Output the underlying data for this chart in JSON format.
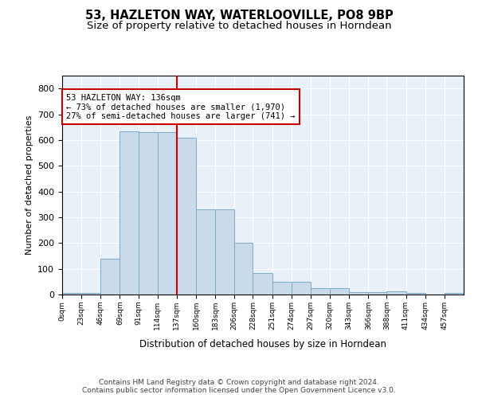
{
  "title": "53, HAZLETON WAY, WATERLOOVILLE, PO8 9BP",
  "subtitle": "Size of property relative to detached houses in Horndean",
  "xlabel": "Distribution of detached houses by size in Horndean",
  "ylabel": "Number of detached properties",
  "bar_edges": [
    0,
    23,
    46,
    69,
    91,
    114,
    137,
    160,
    183,
    206,
    228,
    251,
    274,
    297,
    320,
    343,
    366,
    388,
    411,
    434,
    457,
    480
  ],
  "bar_heights": [
    5,
    5,
    140,
    635,
    630,
    630,
    610,
    330,
    330,
    200,
    85,
    50,
    50,
    25,
    25,
    10,
    10,
    12,
    5,
    0,
    5
  ],
  "bar_color": "#c9daea",
  "bar_edge_color": "#7aaac8",
  "vline_x": 137,
  "vline_color": "#cc0000",
  "annotation_text": "53 HAZLETON WAY: 136sqm\n← 73% of detached houses are smaller (1,970)\n27% of semi-detached houses are larger (741) →",
  "annotation_box_color": "white",
  "annotation_box_edge": "#cc0000",
  "ylim": [
    0,
    850
  ],
  "yticks": [
    0,
    100,
    200,
    300,
    400,
    500,
    600,
    700,
    800
  ],
  "tick_labels": [
    "0sqm",
    "23sqm",
    "46sqm",
    "69sqm",
    "91sqm",
    "114sqm",
    "137sqm",
    "160sqm",
    "183sqm",
    "206sqm",
    "228sqm",
    "251sqm",
    "274sqm",
    "297sqm",
    "320sqm",
    "343sqm",
    "366sqm",
    "388sqm",
    "411sqm",
    "434sqm",
    "457sqm"
  ],
  "footer_text": "Contains HM Land Registry data © Crown copyright and database right 2024.\nContains public sector information licensed under the Open Government Licence v3.0.",
  "bg_color": "#e8f0f8",
  "grid_color": "white",
  "title_fontsize": 10.5,
  "subtitle_fontsize": 9.5,
  "ylabel_fontsize": 8,
  "xlabel_fontsize": 8.5,
  "footer_fontsize": 6.5,
  "annotation_fontsize": 7.5
}
